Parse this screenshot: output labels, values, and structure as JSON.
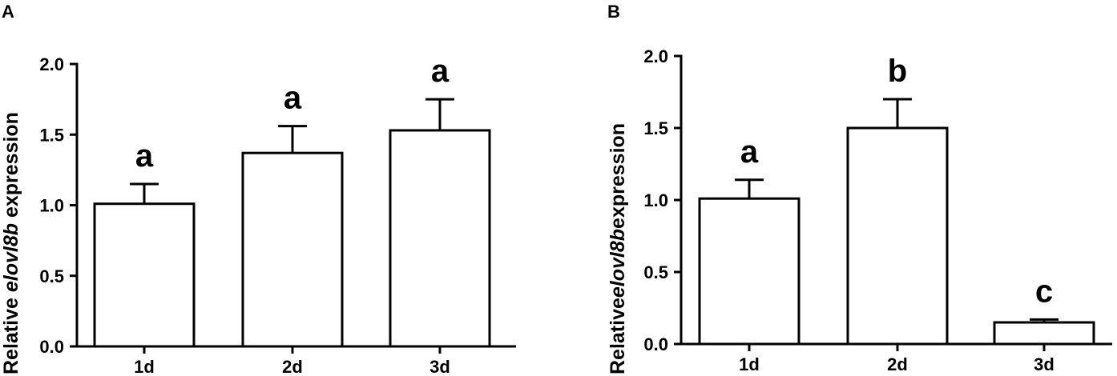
{
  "panels": [
    {
      "label": "A",
      "ylabel_prefix": "Relative ",
      "ylabel_gene": "elovl8b",
      "ylabel_suffix": " expression",
      "yticks": [
        "0.0",
        "0.5",
        "1.0",
        "1.5",
        "2.0"
      ]
    },
    {
      "label": "B",
      "ylabel_prefix": "Relative",
      "ylabel_gene": "elovl8b",
      "ylabel_suffix": "expression",
      "yticks": [
        "0.0",
        "0.5",
        "1.0",
        "1.5",
        "2.0"
      ]
    }
  ],
  "chart_data": [
    {
      "type": "bar",
      "categories": [
        "1d",
        "2d",
        "3d"
      ],
      "values": [
        1.01,
        1.37,
        1.53
      ],
      "error_upper": [
        0.14,
        0.19,
        0.22
      ],
      "significance": [
        "a",
        "a",
        "a"
      ],
      "ylabel": "Relative elovl8b expression",
      "ylim": [
        0,
        2.0
      ],
      "grid": false
    },
    {
      "type": "bar",
      "categories": [
        "1d",
        "2d",
        "3d"
      ],
      "values": [
        1.01,
        1.5,
        0.15
      ],
      "error_upper": [
        0.13,
        0.2,
        0.02
      ],
      "significance": [
        "a",
        "b",
        "c"
      ],
      "ylabel": "Relativeelovl8bexpression",
      "ylim": [
        0,
        2.0
      ],
      "grid": false
    }
  ]
}
